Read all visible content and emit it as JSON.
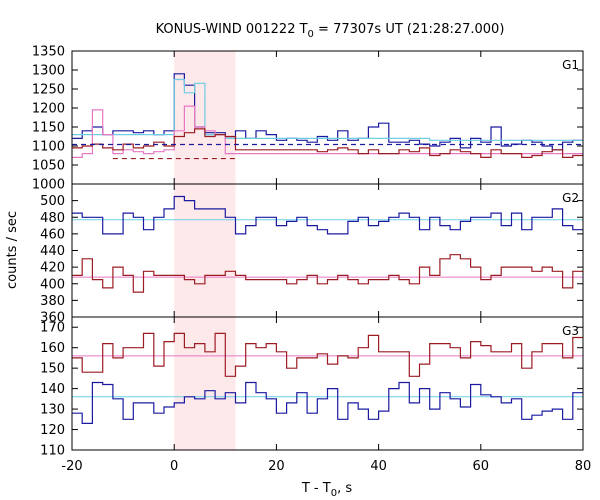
{
  "chart_data": {
    "type": "line",
    "title": {
      "prefix": "KONUS-WIND 001222 T",
      "sub": "0",
      "suffix": " = 77307s UT (21:28:27.000)"
    },
    "xlabel": {
      "prefix": "T - T",
      "sub": "0",
      "suffix": ", s"
    },
    "ylabel": "counts / sec",
    "xlim": [
      -20,
      80
    ],
    "x_ticks": [
      "-20",
      "0",
      "20",
      "40",
      "60",
      "80"
    ],
    "shaded_interval": {
      "x": [
        0,
        12
      ],
      "color": "#fde8ea"
    },
    "bin_edges": [
      -20,
      -18,
      -16,
      -14,
      -12,
      -10,
      -8,
      -6,
      -4,
      -2,
      0,
      2,
      4,
      6,
      8,
      10,
      12,
      14,
      16,
      18,
      20,
      22,
      24,
      26,
      28,
      30,
      32,
      34,
      36,
      38,
      40,
      42,
      44,
      46,
      48,
      50,
      52,
      54,
      56,
      58,
      60,
      62,
      64,
      66,
      68,
      70,
      72,
      74,
      76,
      78,
      80
    ],
    "panels": [
      {
        "label": "G1",
        "ylim": [
          1000,
          1350
        ],
        "y_ticks": [
          "1000",
          "1050",
          "1100",
          "1150",
          "1200",
          "1250",
          "1300",
          "1350"
        ],
        "series": [
          {
            "color": "#1a1aa0",
            "style": "step",
            "values": [
              1120,
              1140,
              1150,
              1130,
              1140,
              1140,
              1135,
              1140,
              1130,
              1140,
              1290,
              1260,
              1150,
              1135,
              1135,
              1120,
              1140,
              1120,
              1140,
              1130,
              1115,
              1120,
              1115,
              1110,
              1125,
              1115,
              1140,
              1115,
              1120,
              1150,
              1160,
              1110,
              1110,
              1115,
              1105,
              1100,
              1110,
              1120,
              1095,
              1120,
              1110,
              1150,
              1100,
              1105,
              1115,
              1110,
              1100,
              1090,
              1110,
              1115
            ]
          },
          {
            "color": "#6ccde3",
            "style": "step",
            "values": [
              1130,
              1130,
              1130,
              1130,
              1130,
              1130,
              1130,
              1130,
              1130,
              1130,
              1275,
              1240,
              1265,
              1130,
              1130,
              1120,
              1120,
              1120,
              1120,
              1120,
              1120,
              1120,
              1120,
              1120,
              1120,
              1120,
              1120,
              1120,
              1120,
              1120,
              1120,
              1120,
              1120,
              1120,
              1120,
              1115,
              1115,
              1115,
              1115,
              1115,
              1115,
              1115,
              1115,
              1115,
              1115,
              1115,
              1115,
              1115,
              1115,
              1115
            ]
          },
          {
            "color": "#e878c4",
            "style": "step",
            "values": [
              1070,
              1080,
              1195,
              1130,
              1080,
              1090,
              1085,
              1080,
              1085,
              1090,
              1140,
              1205,
              1150,
              1140,
              1130,
              1080,
              1080,
              1080,
              1080,
              1080,
              1080,
              1080,
              1080,
              1080,
              1080,
              1080,
              1080,
              1080,
              1080,
              1080,
              1080,
              1080,
              1080,
              1080,
              1080,
              1080,
              1080,
              1080,
              1080,
              1080,
              1080,
              1080,
              1080,
              1080,
              1080,
              1080,
              1080,
              1080,
              1080,
              1080
            ]
          },
          {
            "color": "#9c1c24",
            "style": "step",
            "values": [
              1095,
              1100,
              1105,
              1095,
              1090,
              1105,
              1095,
              1100,
              1110,
              1100,
              1125,
              1135,
              1145,
              1125,
              1130,
              1125,
              1090,
              1090,
              1090,
              1090,
              1090,
              1090,
              1090,
              1090,
              1085,
              1090,
              1095,
              1090,
              1080,
              1090,
              1080,
              1080,
              1090,
              1085,
              1095,
              1075,
              1080,
              1090,
              1085,
              1080,
              1070,
              1090,
              1080,
              1080,
              1070,
              1075,
              1085,
              1090,
              1070,
              1075
            ]
          },
          {
            "color": "#1a1aa0",
            "style": "dashed",
            "values": [
              1104,
              1104,
              1104,
              1104,
              1104,
              1104,
              1104,
              1104,
              1104,
              1104,
              1104,
              1104,
              1104,
              1104,
              1104,
              1104,
              1104,
              1104,
              1104,
              1104,
              1104,
              1104,
              1104,
              1104,
              1104,
              1104,
              1104,
              1104,
              1104,
              1104,
              1104,
              1104,
              1104,
              1104,
              1104,
              1104,
              1104,
              1104,
              1104,
              1104,
              1104,
              1104,
              1104,
              1104,
              1104,
              1104,
              1104,
              1104,
              1104,
              1104
            ]
          },
          {
            "color": "#9c1c24",
            "style": "dashed",
            "values": [
              null,
              null,
              null,
              null,
              1067,
              1067,
              1067,
              1067,
              1067,
              1067,
              1067,
              1067,
              1067,
              1067,
              1067,
              1067,
              null,
              null,
              null,
              null,
              null,
              null,
              null,
              null,
              null,
              null,
              null,
              null,
              null,
              null,
              null,
              null,
              null,
              null,
              null,
              null,
              null,
              null,
              null,
              null,
              null,
              null,
              null,
              null,
              null,
              null,
              null,
              null,
              null,
              null
            ]
          }
        ]
      },
      {
        "label": "G2",
        "ylim": [
          360,
          520
        ],
        "y_ticks": [
          "360",
          "380",
          "400",
          "420",
          "440",
          "460",
          "480",
          "500"
        ],
        "series": [
          {
            "color": "#6ccde3",
            "style": "fit",
            "values": [
              477,
              477,
              477,
              477,
              477,
              477,
              477,
              477,
              477,
              477,
              477,
              477,
              477,
              477,
              477,
              477,
              477,
              477,
              477,
              477,
              477,
              477,
              477,
              477,
              477,
              477,
              477,
              477,
              477,
              477,
              477,
              477,
              477,
              477,
              477,
              477,
              477,
              477,
              477,
              477,
              477,
              477,
              477,
              477,
              477,
              477,
              477,
              477,
              477,
              477
            ]
          },
          {
            "color": "#e878c4",
            "style": "fit",
            "values": [
              408,
              408,
              408,
              408,
              408,
              408,
              408,
              408,
              408,
              408,
              408,
              408,
              408,
              408,
              408,
              408,
              408,
              408,
              408,
              408,
              408,
              408,
              408,
              408,
              408,
              408,
              408,
              408,
              408,
              408,
              408,
              408,
              408,
              408,
              408,
              408,
              408,
              408,
              408,
              408,
              408,
              408,
              408,
              408,
              408,
              408,
              408,
              408,
              408,
              408
            ]
          },
          {
            "color": "#1a1aa0",
            "style": "step",
            "values": [
              485,
              480,
              480,
              460,
              460,
              485,
              480,
              465,
              480,
              490,
              505,
              500,
              490,
              490,
              490,
              480,
              460,
              470,
              480,
              480,
              470,
              475,
              480,
              470,
              465,
              460,
              460,
              475,
              480,
              470,
              475,
              480,
              485,
              480,
              465,
              480,
              470,
              465,
              475,
              480,
              480,
              485,
              470,
              485,
              465,
              480,
              480,
              490,
              470,
              465
            ]
          },
          {
            "color": "#9c1c24",
            "style": "step",
            "values": [
              410,
              430,
              405,
              395,
              420,
              410,
              390,
              415,
              410,
              410,
              410,
              405,
              400,
              410,
              410,
              415,
              410,
              405,
              405,
              405,
              405,
              400,
              405,
              410,
              400,
              405,
              410,
              405,
              400,
              405,
              405,
              410,
              405,
              400,
              420,
              410,
              430,
              435,
              430,
              420,
              405,
              410,
              420,
              420,
              420,
              415,
              420,
              415,
              395,
              415
            ]
          }
        ]
      },
      {
        "label": "G3",
        "ylim": [
          110,
          175
        ],
        "y_ticks": [
          "110",
          "120",
          "130",
          "140",
          "150",
          "160",
          "170"
        ],
        "series": [
          {
            "color": "#6ccde3",
            "style": "fit",
            "values": [
              136,
              136,
              136,
              136,
              136,
              136,
              136,
              136,
              136,
              136,
              136,
              136,
              136,
              136,
              136,
              136,
              136,
              136,
              136,
              136,
              136,
              136,
              136,
              136,
              136,
              136,
              136,
              136,
              136,
              136,
              136,
              136,
              136,
              136,
              136,
              136,
              136,
              136,
              136,
              136,
              136,
              136,
              136,
              136,
              136,
              136,
              136,
              136,
              136,
              136
            ]
          },
          {
            "color": "#e878c4",
            "style": "fit",
            "values": [
              156,
              156,
              156,
              156,
              156,
              156,
              156,
              156,
              156,
              156,
              156,
              156,
              156,
              156,
              156,
              156,
              156,
              156,
              156,
              156,
              156,
              156,
              156,
              156,
              156,
              156,
              156,
              156,
              156,
              156,
              156,
              156,
              156,
              156,
              156,
              156,
              156,
              156,
              156,
              156,
              156,
              156,
              156,
              156,
              156,
              156,
              156,
              156,
              156,
              156
            ]
          },
          {
            "color": "#1a1aa0",
            "style": "step",
            "values": [
              128,
              123,
              143,
              142,
              135,
              125,
              133,
              133,
              128,
              131,
              133,
              136,
              135,
              139,
              135,
              138,
              133,
              143,
              138,
              135,
              128,
              133,
              138,
              128,
              135,
              140,
              125,
              133,
              130,
              125,
              129,
              140,
              143,
              133,
              140,
              130,
              138,
              135,
              131,
              142,
              137,
              136,
              133,
              135,
              125,
              127,
              129,
              130,
              125,
              138
            ]
          },
          {
            "color": "#9c1c24",
            "style": "step",
            "values": [
              155,
              148,
              148,
              162,
              155,
              160,
              160,
              167,
              151,
              163,
              167,
              160,
              162,
              158,
              167,
              146,
              151,
              162,
              160,
              162,
              158,
              150,
              155,
              155,
              157,
              152,
              156,
              155,
              160,
              166,
              158,
              158,
              158,
              146,
              152,
              162,
              162,
              160,
              155,
              163,
              161,
              158,
              158,
              162,
              150,
              158,
              162,
              162,
              155,
              165
            ]
          }
        ]
      }
    ]
  }
}
